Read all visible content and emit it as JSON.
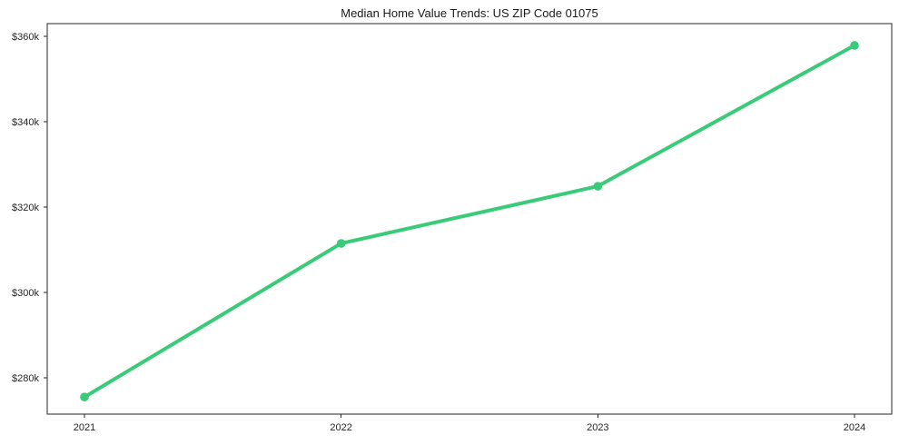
{
  "chart_data": {
    "type": "line",
    "title": "Median Home Value Trends: US ZIP Code 01075",
    "categories": [
      "2021",
      "2022",
      "2023",
      "2024"
    ],
    "series": [
      {
        "name": "Median Home Value",
        "values": [
          275500,
          311500,
          324900,
          357900
        ],
        "color": "#3acb79"
      }
    ],
    "xlabel": "",
    "ylabel": "",
    "ylim": [
      271500,
      363000
    ],
    "yticks": [
      {
        "value": 280000,
        "label": "$280k"
      },
      {
        "value": 300000,
        "label": "$300k"
      },
      {
        "value": 320000,
        "label": "$320k"
      },
      {
        "value": 340000,
        "label": "$340k"
      },
      {
        "value": 360000,
        "label": "$360k"
      }
    ],
    "grid": false,
    "legend_visible": false,
    "frame": "box",
    "axis_color": "#262626",
    "text_color": "#262626",
    "background_color": "#ffffff",
    "line_width": 4,
    "marker_radius": 4.8
  }
}
